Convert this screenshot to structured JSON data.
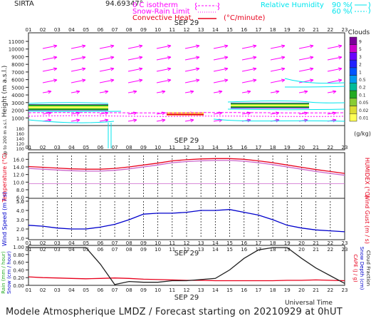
{
  "header": {
    "station": "SIRTA",
    "coordinate": "94.69347°",
    "legend_isotherm": "0 C isotherm",
    "legend_snow_rain": "Snow-Rain Limit",
    "legend_convective": "Convective Heat.",
    "legend_convective_unit": "(°C/minute)",
    "legend_rh": "Relative Humidity",
    "rh_levels": [
      "90 %",
      "60 %"
    ]
  },
  "hours": [
    "01",
    "02",
    "03",
    "04",
    "05",
    "06",
    "07",
    "08",
    "09",
    "10",
    "11",
    "12",
    "13",
    "14",
    "15",
    "16",
    "17",
    "18",
    "19",
    "20",
    "21",
    "22",
    "23"
  ],
  "date_label": "SEP 29",
  "footer": {
    "text": "Modele Atmospherique LMDZ / Forecast starting on 20210929 at 0hUT",
    "universal_time": "Universal Time"
  },
  "colors": {
    "magenta": "#ff00ff",
    "cyan": "#00e5ee",
    "red": "#e8001c",
    "blue": "#0000cc",
    "dark_blue": "#00008b",
    "black": "#222222"
  },
  "chart_data": [
    {
      "type": "heatmap",
      "name": "Height profile panel",
      "ylabel": "Height (m a.s.l.)",
      "ylabel2": "Up to 200 m a.s.l.",
      "yticks": [
        1000,
        2000,
        3000,
        4000,
        5000,
        6000,
        7000,
        8000,
        9000,
        10000,
        11000
      ],
      "yticks_low": [
        100,
        120,
        140,
        160,
        180
      ],
      "colorbar_title": "Clouds",
      "colorbar_ticks": [
        "9",
        "5",
        "3",
        "2",
        "1",
        "0.5",
        "0.2",
        "0.1",
        "0.05",
        "0.02",
        "0.01"
      ],
      "colorbar_unit": "(g/kg)",
      "colorbar_colors": [
        "#7b0099",
        "#cc00cc",
        "#6a00ff",
        "#2222ff",
        "#0055ff",
        "#0099ee",
        "#00bb99",
        "#22aa22",
        "#88cc33",
        "#dddd33",
        "#ffff55"
      ],
      "contour_labels": [
        "60",
        "90"
      ]
    },
    {
      "type": "line",
      "name": "Temperature panel",
      "ylabel": "Temperature (°C)",
      "ylabel2": "HUMIDEX (°C)",
      "yticks": [
        5.0,
        6.0,
        8.0,
        10.0,
        12.0,
        14.0,
        16.0
      ],
      "ylim": [
        5,
        17
      ],
      "series": [
        {
          "name": "Temperature",
          "color": "#e8001c",
          "values": [
            14.1,
            13.9,
            13.7,
            13.5,
            13.4,
            13.4,
            13.6,
            14.0,
            14.5,
            15.0,
            15.6,
            15.9,
            16.1,
            16.2,
            16.2,
            16.0,
            15.6,
            15.1,
            14.5,
            13.9,
            13.3,
            12.8,
            12.3
          ]
        },
        {
          "name": "Humidex",
          "color": "#cc66cc",
          "values": [
            13.6,
            13.4,
            13.2,
            13.0,
            12.9,
            12.9,
            13.1,
            13.5,
            14.0,
            14.5,
            15.1,
            15.4,
            15.6,
            15.7,
            15.7,
            15.5,
            15.1,
            14.6,
            14.0,
            13.4,
            12.8,
            12.3,
            11.8
          ]
        }
      ],
      "reference_line": 9.6
    },
    {
      "type": "line",
      "name": "Wind panel",
      "ylabel": "Wind Speed (m / s)",
      "ylabel2": "Wind Gust (m / s)",
      "yticks": [
        1.0,
        2.0,
        3.0,
        4.0,
        5.0
      ],
      "ylim": [
        1,
        5
      ],
      "series": [
        {
          "name": "Wind Speed",
          "color": "#0000cc",
          "values": [
            2.4,
            2.3,
            2.1,
            2.0,
            2.0,
            2.2,
            2.5,
            3.0,
            3.6,
            3.7,
            3.7,
            3.8,
            4.0,
            4.0,
            4.1,
            3.8,
            3.5,
            3.0,
            2.4,
            2.1,
            1.9,
            1.8,
            1.7
          ]
        }
      ]
    },
    {
      "type": "line",
      "name": "Precipitation panel",
      "ylabel": "Rain (mm / hour)",
      "ylabel2": "Snow (cm / hour)",
      "ylabel3": "CAPE (J / g)",
      "ylabel4": "Snow Depth (cm)",
      "ylabel5": "Cloud Fraction",
      "yticks": [
        0.0,
        0.2,
        0.4,
        0.6,
        0.8,
        1.0
      ],
      "ylim": [
        0,
        1
      ],
      "series": [
        {
          "name": "CAPE",
          "color": "#e8001c",
          "values": [
            0.22,
            0.2,
            0.19,
            0.18,
            0.17,
            0.18,
            0.19,
            0.18,
            0.16,
            0.15,
            0.14,
            0.13,
            0.13,
            0.12,
            0.12,
            0.12,
            0.12,
            0.12,
            0.13,
            0.13,
            0.14,
            0.13,
            0.12
          ]
        },
        {
          "name": "Cloud Fraction",
          "color": "#222222",
          "values": [
            0.98,
            0.98,
            0.98,
            0.98,
            0.98,
            0.55,
            0.02,
            0.1,
            0.08,
            0.08,
            0.12,
            0.12,
            0.15,
            0.18,
            0.4,
            0.7,
            0.92,
            0.98,
            0.98,
            0.7,
            0.45,
            0.25,
            0.05
          ]
        }
      ]
    }
  ]
}
